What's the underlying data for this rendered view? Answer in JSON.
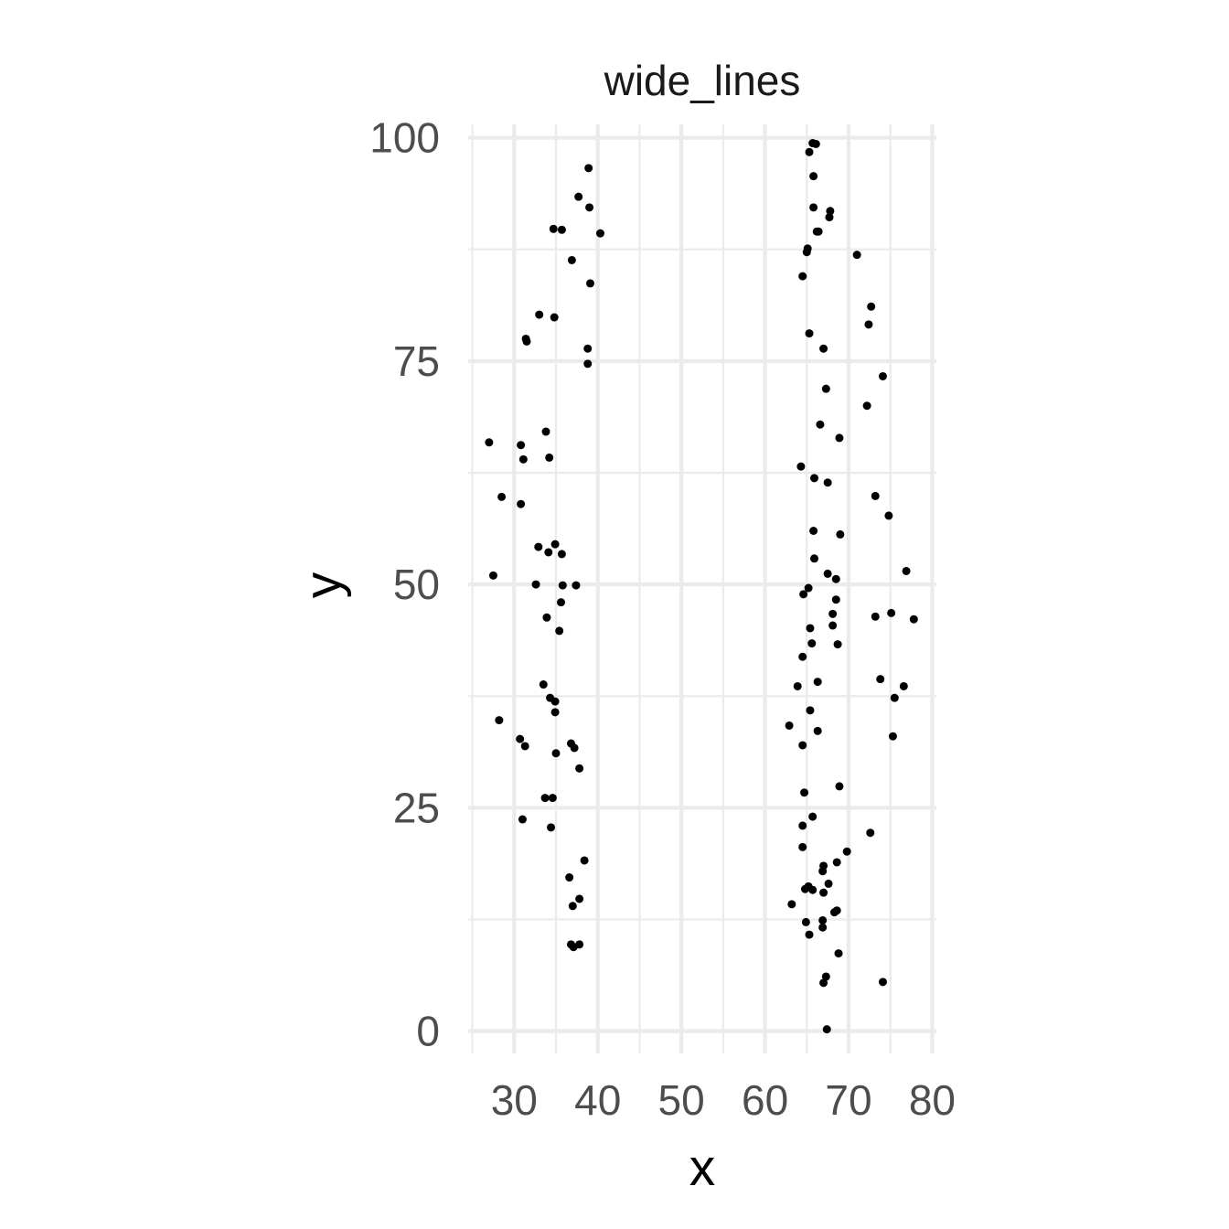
{
  "chart_data": {
    "type": "scatter",
    "title": "wide_lines",
    "xlabel": "x",
    "ylabel": "y",
    "xlim": [
      24.5,
      80.5
    ],
    "ylim": [
      -2.5,
      101.5
    ],
    "x_ticks": [
      30,
      40,
      50,
      60,
      70,
      80
    ],
    "y_ticks": [
      0,
      25,
      50,
      75,
      100
    ],
    "x_tick_labels": [
      "30",
      "40",
      "50",
      "60",
      "70",
      "80"
    ],
    "y_tick_labels": [
      "0",
      "25",
      "50",
      "75",
      "100"
    ],
    "grid": true,
    "point_color": "#000000",
    "grid_color": "#ebebeb",
    "x": [
      38.9,
      37.7,
      39.0,
      40.3,
      34.7,
      35.7,
      36.9,
      39.1,
      33.0,
      31.4,
      31.5,
      34.8,
      38.8,
      38.8,
      27.0,
      30.8,
      31.1,
      33.8,
      34.2,
      28.5,
      30.8,
      32.9,
      34.9,
      35.7,
      34.1,
      27.5,
      32.6,
      35.8,
      37.4,
      35.6,
      33.9,
      35.4,
      33.5,
      34.3,
      34.9,
      28.2,
      30.7,
      31.3,
      34.9,
      37.2,
      36.8,
      37.8,
      35.0,
      33.7,
      34.6,
      34.4,
      38.4,
      36.6,
      37.8,
      37.0,
      37.1,
      36.8,
      37.8,
      31.0,
      65.7,
      66.1,
      65.3,
      65.8,
      67.8,
      67.7,
      65.8,
      66.2,
      66.4,
      65.1,
      65.0,
      64.5,
      71.0,
      72.7,
      72.4,
      65.3,
      67.0,
      67.3,
      74.1,
      72.2,
      66.6,
      68.9,
      64.3,
      65.9,
      67.5,
      73.2,
      74.8,
      65.8,
      69.0,
      65.9,
      67.5,
      68.5,
      76.9,
      64.6,
      65.2,
      68.5,
      68.1,
      68.1,
      73.2,
      75.1,
      77.8,
      65.4,
      65.6,
      68.7,
      64.5,
      66.3,
      73.8,
      63.9,
      76.6,
      75.5,
      65.4,
      62.9,
      66.3,
      75.3,
      64.5,
      68.9,
      64.7,
      64.5,
      65.7,
      72.6,
      69.8,
      64.5,
      68.6,
      67.0,
      66.9,
      65.2,
      65.7,
      64.8,
      67.6,
      67.0,
      63.2,
      68.6,
      68.3,
      66.9,
      64.9,
      66.9,
      65.3,
      68.8,
      67.3,
      67.0,
      74.1,
      67.4
    ],
    "y": [
      96.6,
      93.4,
      92.2,
      89.3,
      89.8,
      89.7,
      86.3,
      83.7,
      80.2,
      77.5,
      77.2,
      79.9,
      76.4,
      74.7,
      65.9,
      65.6,
      64.0,
      67.1,
      64.2,
      59.8,
      59.0,
      54.2,
      54.5,
      53.4,
      53.6,
      51.0,
      50.0,
      49.9,
      49.9,
      48.0,
      46.3,
      44.8,
      38.8,
      37.3,
      36.9,
      34.8,
      32.7,
      31.9,
      35.7,
      31.7,
      32.2,
      29.4,
      31.1,
      26.1,
      26.1,
      22.8,
      19.1,
      17.2,
      14.8,
      14.0,
      9.4,
      9.7,
      9.7,
      23.7,
      99.4,
      99.3,
      98.4,
      95.7,
      91.8,
      91.1,
      92.2,
      89.5,
      89.5,
      87.6,
      87.2,
      84.5,
      86.9,
      81.1,
      79.1,
      78.1,
      76.4,
      71.9,
      73.3,
      70.0,
      67.9,
      66.4,
      63.2,
      61.9,
      61.4,
      59.9,
      57.7,
      56.0,
      55.6,
      52.9,
      51.2,
      50.6,
      51.5,
      48.9,
      49.6,
      48.3,
      46.7,
      45.4,
      46.4,
      46.8,
      46.1,
      45.1,
      43.4,
      43.3,
      41.9,
      39.1,
      39.4,
      38.6,
      38.6,
      37.3,
      35.9,
      34.2,
      33.6,
      33.0,
      32.0,
      27.4,
      26.7,
      23.0,
      24.0,
      22.2,
      20.1,
      20.6,
      18.9,
      18.5,
      17.9,
      16.2,
      15.8,
      15.9,
      16.5,
      15.5,
      14.2,
      13.5,
      13.3,
      12.4,
      12.2,
      11.6,
      10.8,
      8.7,
      6.1,
      5.4,
      5.5,
      0.2
    ]
  }
}
